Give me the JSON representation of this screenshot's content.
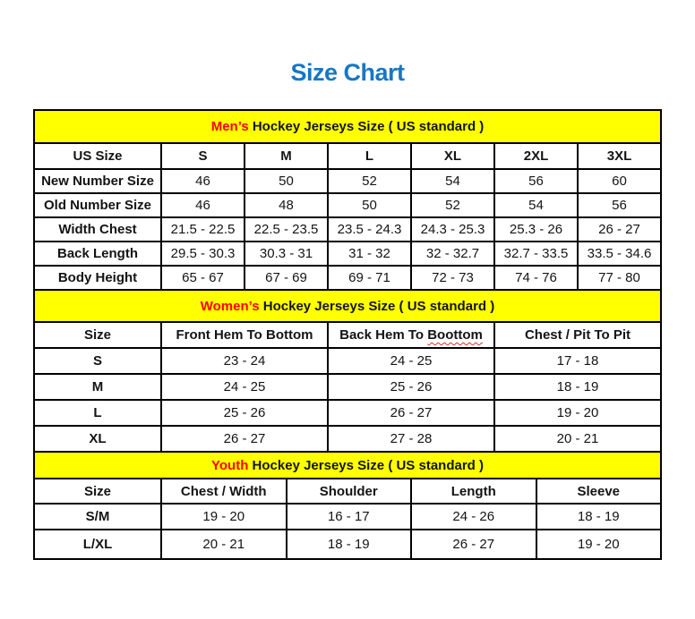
{
  "page": {
    "title": "Size Chart"
  },
  "colors": {
    "title_blue": "#1777c4",
    "banner_yellow": "#ffff00",
    "accent_red": "#ff0000",
    "border_black": "#000000",
    "squiggle_red": "#d93025"
  },
  "sections": [
    {
      "id": "mens",
      "banner_highlight": "Men’s",
      "banner_rest": "Hockey Jerseys Size ( US standard )",
      "columns": [
        "US Size",
        "S",
        "M",
        "L",
        "XL",
        "2XL",
        "3XL"
      ],
      "bold_row_labels": false,
      "rows": [
        {
          "label": "New Number Size",
          "values": [
            "46",
            "50",
            "52",
            "54",
            "56",
            "60"
          ]
        },
        {
          "label": "Old Number Size",
          "values": [
            "46",
            "48",
            "50",
            "52",
            "54",
            "56"
          ]
        },
        {
          "label": "Width Chest",
          "values": [
            "21.5 - 22.5",
            "22.5 - 23.5",
            "23.5 - 24.3",
            "24.3 - 25.3",
            "25.3 - 26",
            "26 - 27"
          ]
        },
        {
          "label": "Back Length",
          "values": [
            "29.5 - 30.3",
            "30.3 - 31",
            "31 - 32",
            "32 - 32.7",
            "32.7 - 33.5",
            "33.5 - 34.6"
          ]
        },
        {
          "label": "Body Height",
          "values": [
            "65 - 67",
            "67 - 69",
            "69 - 71",
            "72 - 73",
            "74 - 76",
            "77 - 80"
          ]
        }
      ]
    },
    {
      "id": "womens",
      "banner_highlight": "Women’s",
      "banner_rest": "Hockey Jerseys Size ( US standard )",
      "columns": [
        "Size",
        "Front Hem To Bottom",
        "Back Hem To Boottom",
        "Chest / Pit To Pit"
      ],
      "squiggle": {
        "column": 2,
        "word": "Boottom"
      },
      "bold_row_labels": true,
      "rows": [
        {
          "label": "S",
          "values": [
            "23 - 24",
            "24 - 25",
            "17 - 18"
          ]
        },
        {
          "label": "M",
          "values": [
            "24 - 25",
            "25 - 26",
            "18 - 19"
          ]
        },
        {
          "label": "L",
          "values": [
            "25 - 26",
            "26 - 27",
            "19 - 20"
          ]
        },
        {
          "label": "XL",
          "values": [
            "26 - 27",
            "27 - 28",
            "20 - 21"
          ]
        }
      ]
    },
    {
      "id": "youth",
      "banner_highlight": "Youth",
      "banner_rest": "Hockey Jerseys Size ( US standard )",
      "columns": [
        "Size",
        "Chest / Width",
        "Shoulder",
        "Length",
        "Sleeve"
      ],
      "bold_row_labels": true,
      "rows": [
        {
          "label": "S/M",
          "values": [
            "19 - 20",
            "16 - 17",
            "24 - 26",
            "18 - 19"
          ]
        },
        {
          "label": "L/XL",
          "values": [
            "20 - 21",
            "18 - 19",
            "26 - 27",
            "19 - 20"
          ]
        }
      ]
    }
  ]
}
